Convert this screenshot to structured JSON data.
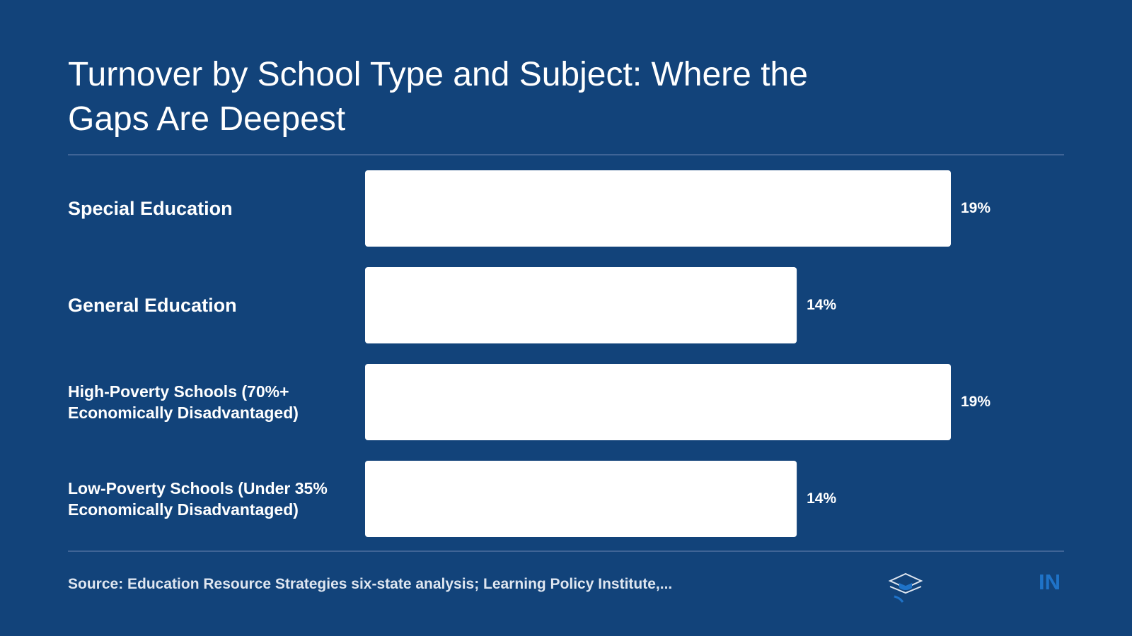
{
  "chart_data": {
    "type": "bar",
    "orientation": "horizontal",
    "title": "Turnover by School Type and Subject: Where the Gaps Are Deepest",
    "categories": [
      "Special Education",
      "General Education",
      "High-Poverty Schools (70%+ Economically Disadvantaged)",
      "Low-Poverty Schools (Under 35% Economically Disadvantaged)"
    ],
    "values": [
      19,
      14,
      19,
      14
    ],
    "value_labels": [
      "19%",
      "14%",
      "19%",
      "14%"
    ],
    "color": "#ffffff",
    "source": "Source: Education Resource Strategies six-state analysis; Learning Policy Institute,...",
    "brand_mark": "IN"
  }
}
